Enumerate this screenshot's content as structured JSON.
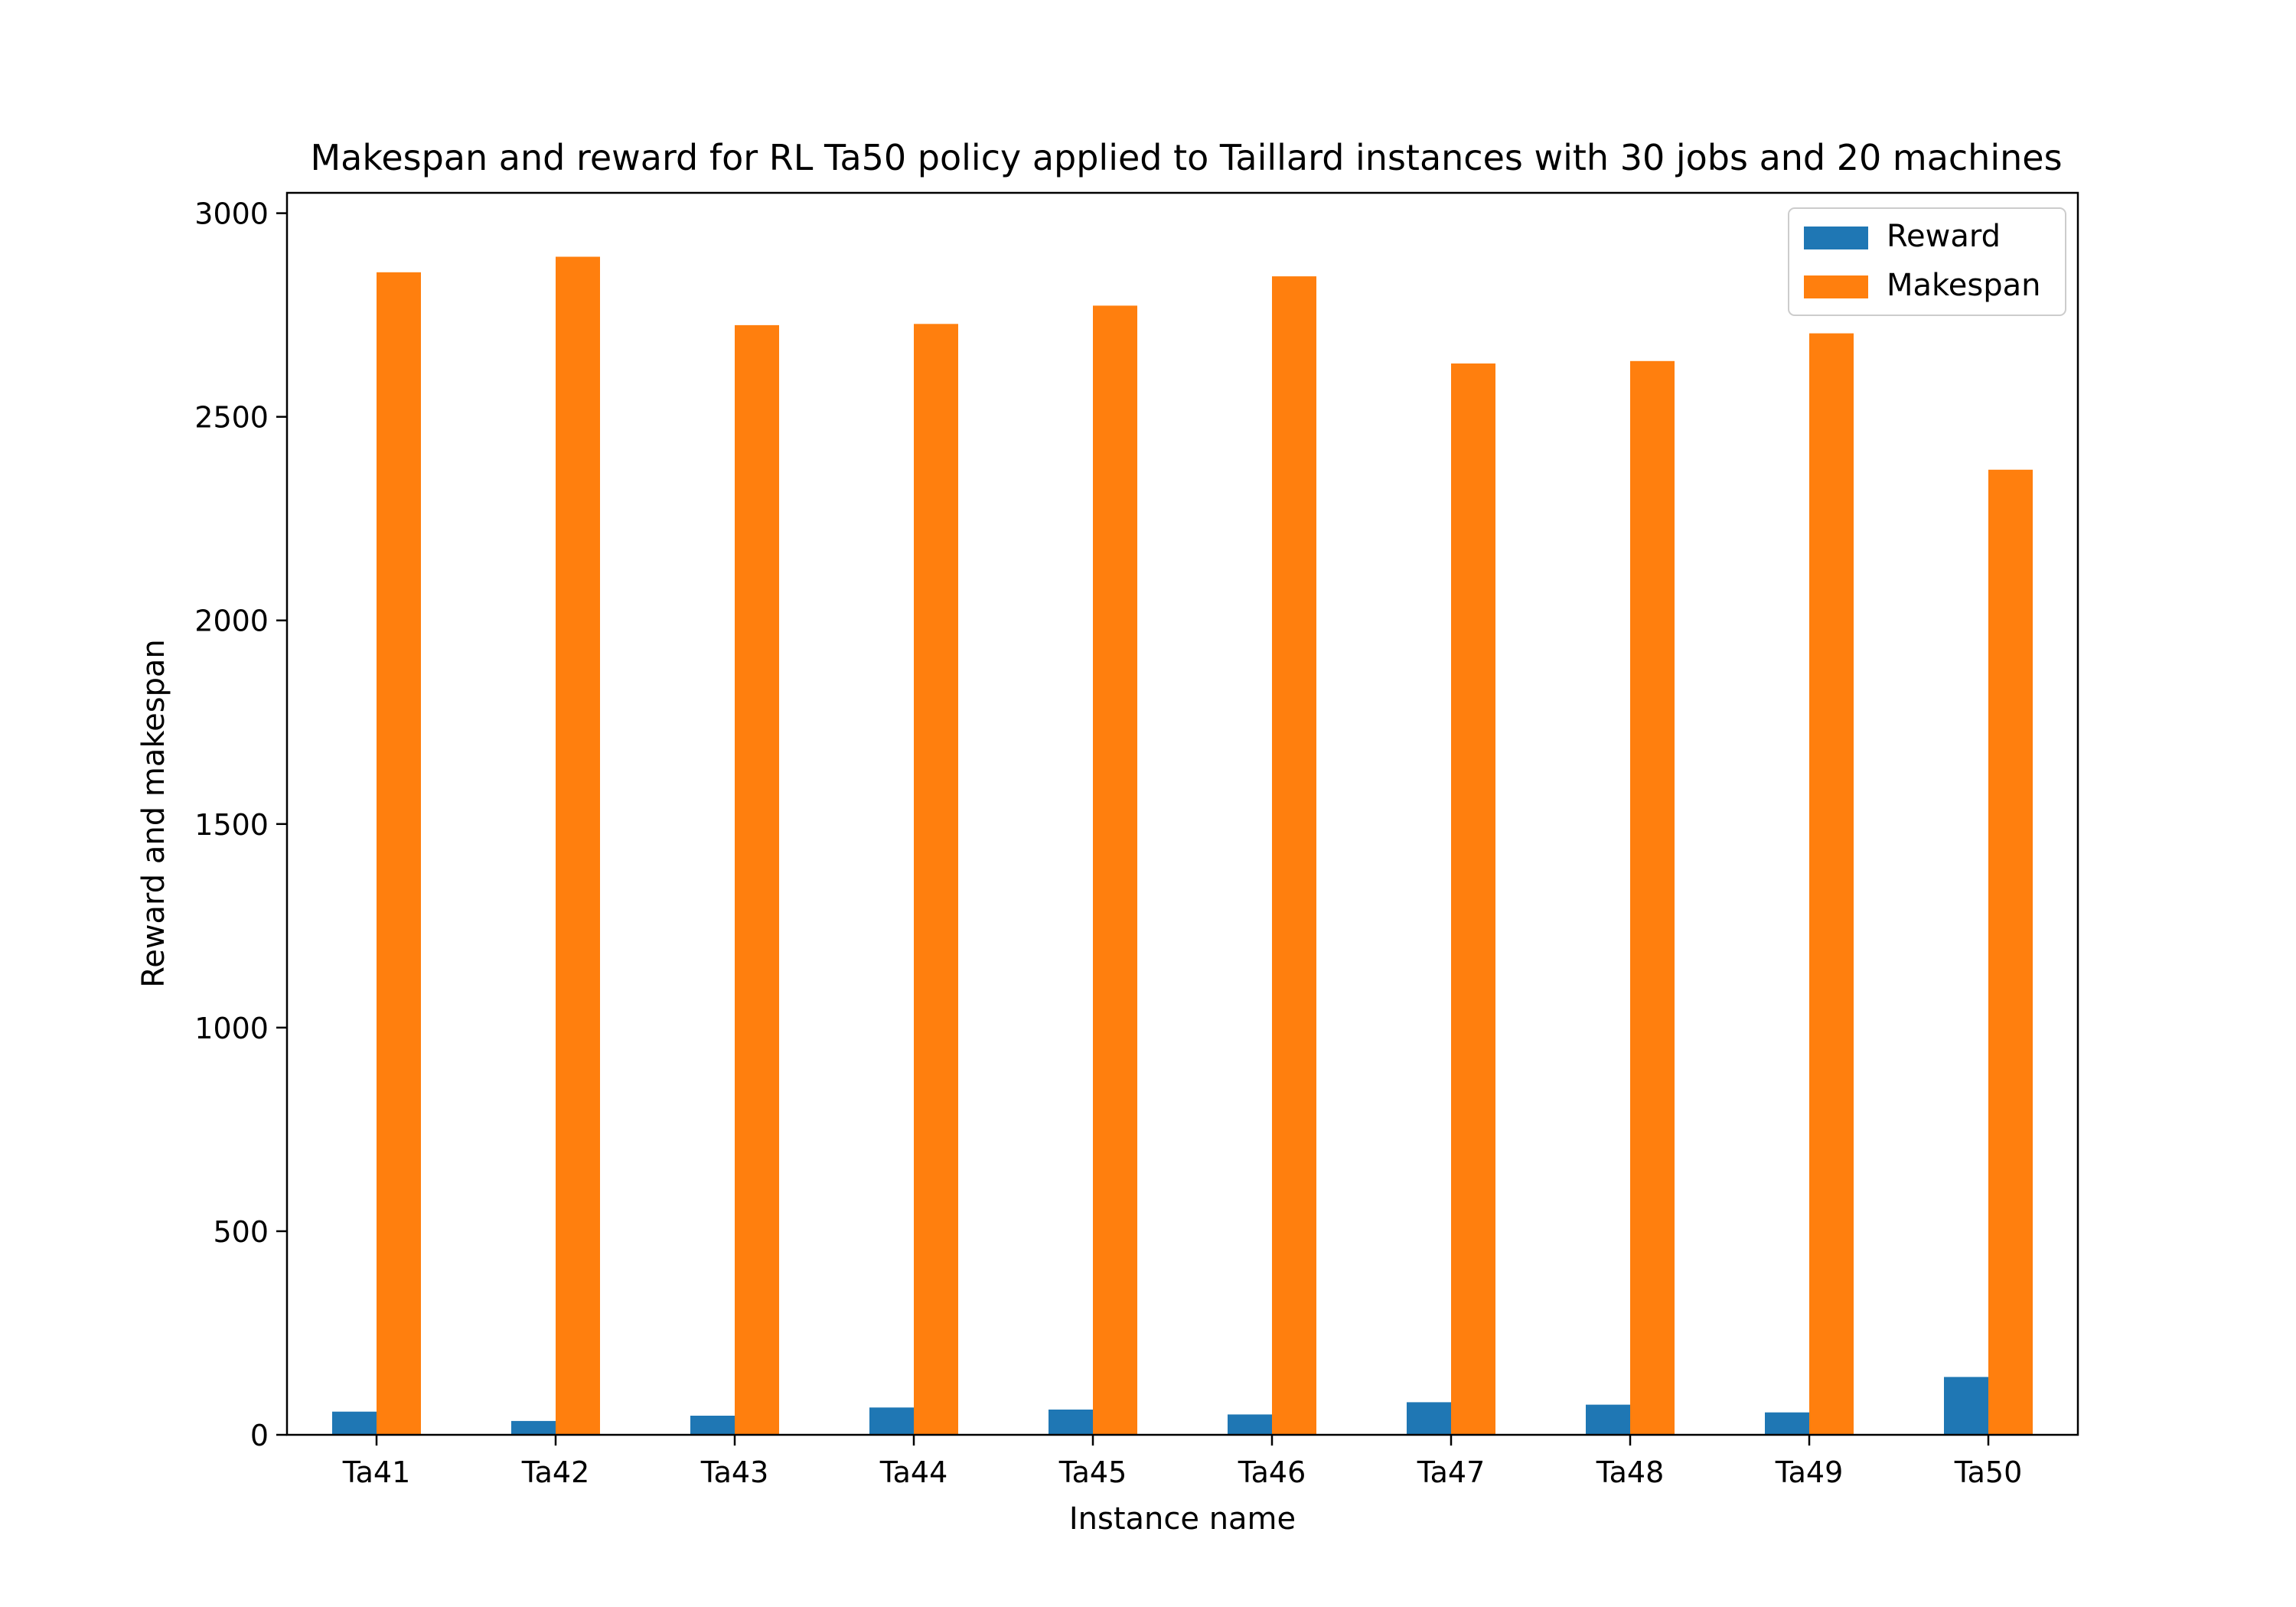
{
  "chart_data": {
    "type": "bar",
    "title": "Makespan and reward for RL Ta50 policy applied to Taillard instances with 30 jobs and 20 machines",
    "xlabel": "Instance name",
    "ylabel": "Reward and makespan",
    "categories": [
      "Ta41",
      "Ta42",
      "Ta43",
      "Ta44",
      "Ta45",
      "Ta46",
      "Ta47",
      "Ta48",
      "Ta49",
      "Ta50"
    ],
    "series": [
      {
        "name": "Reward",
        "color": "#1f77b4",
        "values": [
          57,
          34,
          47,
          67,
          62,
          50,
          80,
          74,
          55,
          142
        ]
      },
      {
        "name": "Makespan",
        "color": "#ff7f0e",
        "values": [
          2855,
          2893,
          2725,
          2728,
          2773,
          2845,
          2631,
          2637,
          2705,
          2370
        ]
      }
    ],
    "ylim": [
      0,
      3050
    ],
    "yticks": [
      0,
      500,
      1000,
      1500,
      2000,
      2500,
      3000
    ],
    "grid": false,
    "legend": {
      "position": "top-right"
    }
  }
}
